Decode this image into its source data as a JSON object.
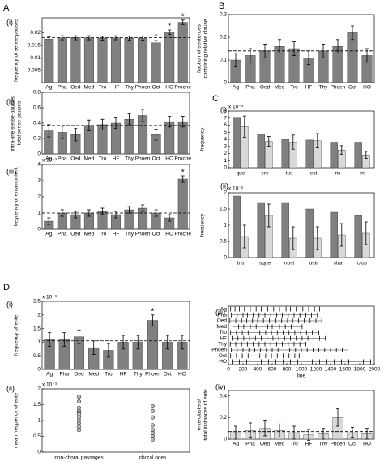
{
  "chart_data": [
    {
      "type": "bar",
      "panel": "A",
      "subpanel": "(i)",
      "ylabel": [
        "frequency of sense-pauses"
      ],
      "categories": [
        "Ag",
        "Pha",
        "Oed",
        "Med",
        "Tro",
        "HF",
        "Thy",
        "Phoen",
        "Oct",
        "HO",
        "Procne"
      ],
      "values": [
        0.0175,
        0.018,
        0.018,
        0.018,
        0.0178,
        0.018,
        0.0178,
        0.0178,
        0.016,
        0.0202,
        0.0242
      ],
      "errors": [
        0.0008,
        0.0008,
        0.0008,
        0.0008,
        0.0008,
        0.0008,
        0.0008,
        0.0008,
        0.0009,
        0.0009,
        0.0009
      ],
      "ylim": [
        0,
        0.026
      ],
      "yticks": [
        0.005,
        0.01,
        0.015,
        0.02
      ],
      "reference": 0.018,
      "color": "#808080",
      "annotations": [
        {
          "text": "*",
          "category": "Oct"
        },
        {
          "text": "*",
          "category": "HO"
        },
        {
          "text": "*",
          "category": "Procne"
        }
      ]
    },
    {
      "type": "bar",
      "subpanel": "(ii)",
      "ylabel": [
        "intra-line sense-pauses/",
        "total sense-pauses"
      ],
      "categories": [
        "Ag",
        "Pha",
        "Oed",
        "Med",
        "Tro",
        "HF",
        "Thy",
        "Phoen",
        "Oct",
        "HO",
        "Procne"
      ],
      "values": [
        0.3,
        0.28,
        0.25,
        0.37,
        0.38,
        0.4,
        0.45,
        0.5,
        0.25,
        0.42,
        0.42
      ],
      "errors": [
        0.08,
        0.08,
        0.08,
        0.07,
        0.07,
        0.07,
        0.07,
        0.08,
        0.07,
        0.07,
        0.07
      ],
      "ylim": [
        0,
        0.8
      ],
      "yticks": [
        0,
        0.2,
        0.4,
        0.6,
        0.8
      ],
      "reference": 0.37,
      "color": "#808080",
      "annotations": []
    },
    {
      "type": "bar",
      "subpanel": "(iii)",
      "ylabel": [
        "frequency of enjambment"
      ],
      "exponent": "x 10⁻³",
      "categories": [
        "Ag",
        "Pha",
        "Oed",
        "Med",
        "Tro",
        "HF",
        "Thy",
        "Phoen",
        "Oct",
        "HO",
        "Procne"
      ],
      "values": [
        0.5,
        1.0,
        0.9,
        1.0,
        1.1,
        0.9,
        1.2,
        1.3,
        1.0,
        0.7,
        3.1
      ],
      "errors": [
        0.2,
        0.2,
        0.2,
        0.2,
        0.2,
        0.2,
        0.2,
        0.2,
        0.2,
        0.2,
        0.2
      ],
      "ylim": [
        0,
        4
      ],
      "yticks": [
        0,
        1,
        2,
        3,
        4
      ],
      "reference": 1.0,
      "color": "#808080",
      "annotations": [
        {
          "text": "*",
          "category": "Procne"
        }
      ]
    },
    {
      "type": "bar",
      "panel": "B",
      "ylabel": [
        "fraction of sentences",
        "containing relative clause"
      ],
      "categories": [
        "Ag",
        "Pha",
        "Oed",
        "Med",
        "Tro",
        "HF",
        "Thy",
        "Phoen",
        "Oct",
        "HO"
      ],
      "values": [
        0.1,
        0.12,
        0.14,
        0.16,
        0.15,
        0.11,
        0.14,
        0.16,
        0.22,
        0.12
      ],
      "errors": [
        0.03,
        0.03,
        0.03,
        0.03,
        0.03,
        0.03,
        0.03,
        0.03,
        0.03,
        0.03
      ],
      "ylim": [
        0,
        0.3
      ],
      "yticks": [
        0,
        0.1,
        0.2,
        0.3
      ],
      "reference": 0.14,
      "color": "#808080",
      "annotations": []
    },
    {
      "type": "grouped-bar",
      "panel": "C",
      "subpanel": "(i)",
      "ylabel": [
        "frequency"
      ],
      "exponent": "x 10⁻³",
      "categories": [
        "que",
        "ere",
        "tus",
        "est",
        "ris",
        "tri"
      ],
      "series": [
        {
          "color": "#808080",
          "values": [
            7.0,
            4.7,
            4.0,
            3.9,
            3.6,
            3.6
          ],
          "errors": null
        },
        {
          "color": "#d9d9d9",
          "values": [
            5.8,
            3.7,
            3.6,
            3.8,
            2.5,
            1.8
          ],
          "errors": [
            1.5,
            0.7,
            1.0,
            1.0,
            0.6,
            0.5
          ]
        }
      ],
      "ylim": [
        0,
        8
      ],
      "yticks": [
        0,
        1,
        2,
        3,
        4,
        5,
        6,
        7,
        8
      ]
    },
    {
      "type": "grouped-bar",
      "subpanel": "(ii)",
      "ylabel": [
        "frequency"
      ],
      "exponent": "x 10⁻³",
      "categories": [
        "tris",
        "sque",
        "nost",
        "ostr",
        "stra",
        "ctus"
      ],
      "series": [
        {
          "color": "#808080",
          "values": [
            1.9,
            1.7,
            1.7,
            1.5,
            1.4,
            1.3
          ],
          "errors": null
        },
        {
          "color": "#d9d9d9",
          "values": [
            0.65,
            1.3,
            0.6,
            0.6,
            0.7,
            0.75
          ],
          "errors": [
            0.35,
            0.35,
            0.35,
            0.35,
            0.35,
            0.35
          ]
        }
      ],
      "ylim": [
        0,
        2
      ],
      "yticks": [
        0,
        0.5,
        1,
        1.5,
        2
      ]
    },
    {
      "type": "raster",
      "subpanel": "(iii)",
      "xlabel": "line",
      "xlim": [
        0,
        2000
      ],
      "xticks": [
        0,
        200,
        400,
        600,
        800,
        1000,
        1200,
        1400,
        1600,
        1800,
        2000
      ],
      "series": [
        {
          "name": "Ag",
          "values": [
            30,
            90,
            150,
            220,
            300,
            380,
            450,
            540,
            620,
            700,
            790,
            850,
            930,
            1020,
            1100,
            1180,
            1250
          ]
        },
        {
          "name": "Pha",
          "values": [
            40,
            120,
            200,
            260,
            340,
            420,
            500,
            580,
            660,
            740,
            820,
            900,
            980,
            1060,
            1140,
            1220
          ]
        },
        {
          "name": "Oed",
          "values": [
            20,
            100,
            180,
            250,
            330,
            400,
            480,
            560,
            650,
            730,
            810,
            880,
            960,
            1040,
            1120,
            1200,
            1280
          ]
        },
        {
          "name": "Med",
          "values": [
            60,
            140,
            210,
            300,
            380,
            460,
            540,
            600,
            700,
            780,
            860,
            940,
            1010
          ]
        },
        {
          "name": "Tro",
          "values": [
            30,
            110,
            190,
            270,
            350,
            430,
            510,
            590,
            670,
            750,
            830,
            910,
            990,
            1070,
            1150,
            1240
          ]
        },
        {
          "name": "HF",
          "values": [
            50,
            130,
            210,
            290,
            370,
            450,
            530,
            610,
            690,
            770,
            850,
            930,
            1010,
            1090,
            1170,
            1250,
            1330
          ]
        },
        {
          "name": "Thy",
          "values": [
            25,
            100,
            180,
            260,
            340,
            420,
            500,
            580,
            660,
            740,
            820,
            900,
            980,
            1060
          ]
        },
        {
          "name": "Phoen",
          "values": [
            40,
            120,
            200,
            280,
            360,
            440,
            520,
            600,
            680,
            760,
            840,
            920,
            1000,
            1080,
            1160,
            1240,
            1320,
            1400,
            1480,
            1560,
            1640
          ]
        },
        {
          "name": "Oct",
          "values": [
            30,
            110,
            190,
            270,
            350,
            430,
            510,
            590,
            670,
            750,
            830,
            910,
            970
          ]
        },
        {
          "name": "HO",
          "values": [
            50,
            150,
            250,
            350,
            450,
            550,
            650,
            750,
            850,
            950,
            1050,
            1150,
            1250,
            1350,
            1450,
            1550,
            1650,
            1750,
            1850,
            1950
          ]
        }
      ]
    },
    {
      "type": "bar",
      "panel": "D",
      "subpanel": "(i)",
      "ylabel": [
        "frequency of ente"
      ],
      "exponent": "x 10⁻³",
      "categories": [
        "Ag",
        "Pha",
        "Oed",
        "Med",
        "Tro",
        "HF",
        "Thy",
        "Phoen",
        "Oct",
        "HO"
      ],
      "values": [
        1.1,
        1.1,
        1.2,
        0.8,
        0.7,
        1.0,
        1.0,
        1.8,
        1.0,
        1.0
      ],
      "errors": [
        0.25,
        0.25,
        0.25,
        0.25,
        0.25,
        0.25,
        0.25,
        0.2,
        0.25,
        0.25
      ],
      "ylim": [
        0,
        2.5
      ],
      "yticks": [
        0,
        0.5,
        1,
        1.5,
        2,
        2.5
      ],
      "reference": 1.05,
      "color": "#808080",
      "annotations": [
        {
          "text": "*",
          "category": "Phoen"
        }
      ]
    },
    {
      "type": "strip",
      "subpanel": "(ii)",
      "ylabel": [
        "mean frequency of ente"
      ],
      "exponent": "x 10⁻³",
      "categories": [
        "non-choral passages",
        "choral odes"
      ],
      "series": [
        {
          "values": [
            1.75,
            1.6,
            1.4,
            1.3,
            1.25,
            1.2,
            1.1,
            1.0,
            0.9,
            0.8,
            0.7
          ]
        },
        {
          "values": [
            1.45,
            1.3,
            1.1,
            0.85,
            0.7,
            0.6,
            0.5,
            0.4
          ]
        }
      ],
      "ylim": [
        0,
        2
      ],
      "yticks": [
        0,
        0.5,
        1,
        1.5,
        2
      ]
    },
    {
      "type": "bar",
      "subpanel": "(iv)",
      "ylabel": [
        "ente clusters/",
        "total instances of ente"
      ],
      "categories": [
        "Ag",
        "Pha",
        "Oed",
        "Med",
        "Tro",
        "HF",
        "Thy",
        "Phoen",
        "Oct",
        "HO"
      ],
      "values": [
        0.06,
        0.08,
        0.1,
        0.08,
        0.06,
        0.04,
        0.05,
        0.2,
        0.06,
        0.05
      ],
      "errors": [
        0.06,
        0.07,
        0.07,
        0.06,
        0.06,
        0.05,
        0.05,
        0.08,
        0.05,
        0.05
      ],
      "ylim": [
        0,
        0.45
      ],
      "yticks": [
        0,
        0.2,
        0.4
      ],
      "reference": 0.07,
      "color": "#d9d9d9",
      "annotations": []
    }
  ]
}
